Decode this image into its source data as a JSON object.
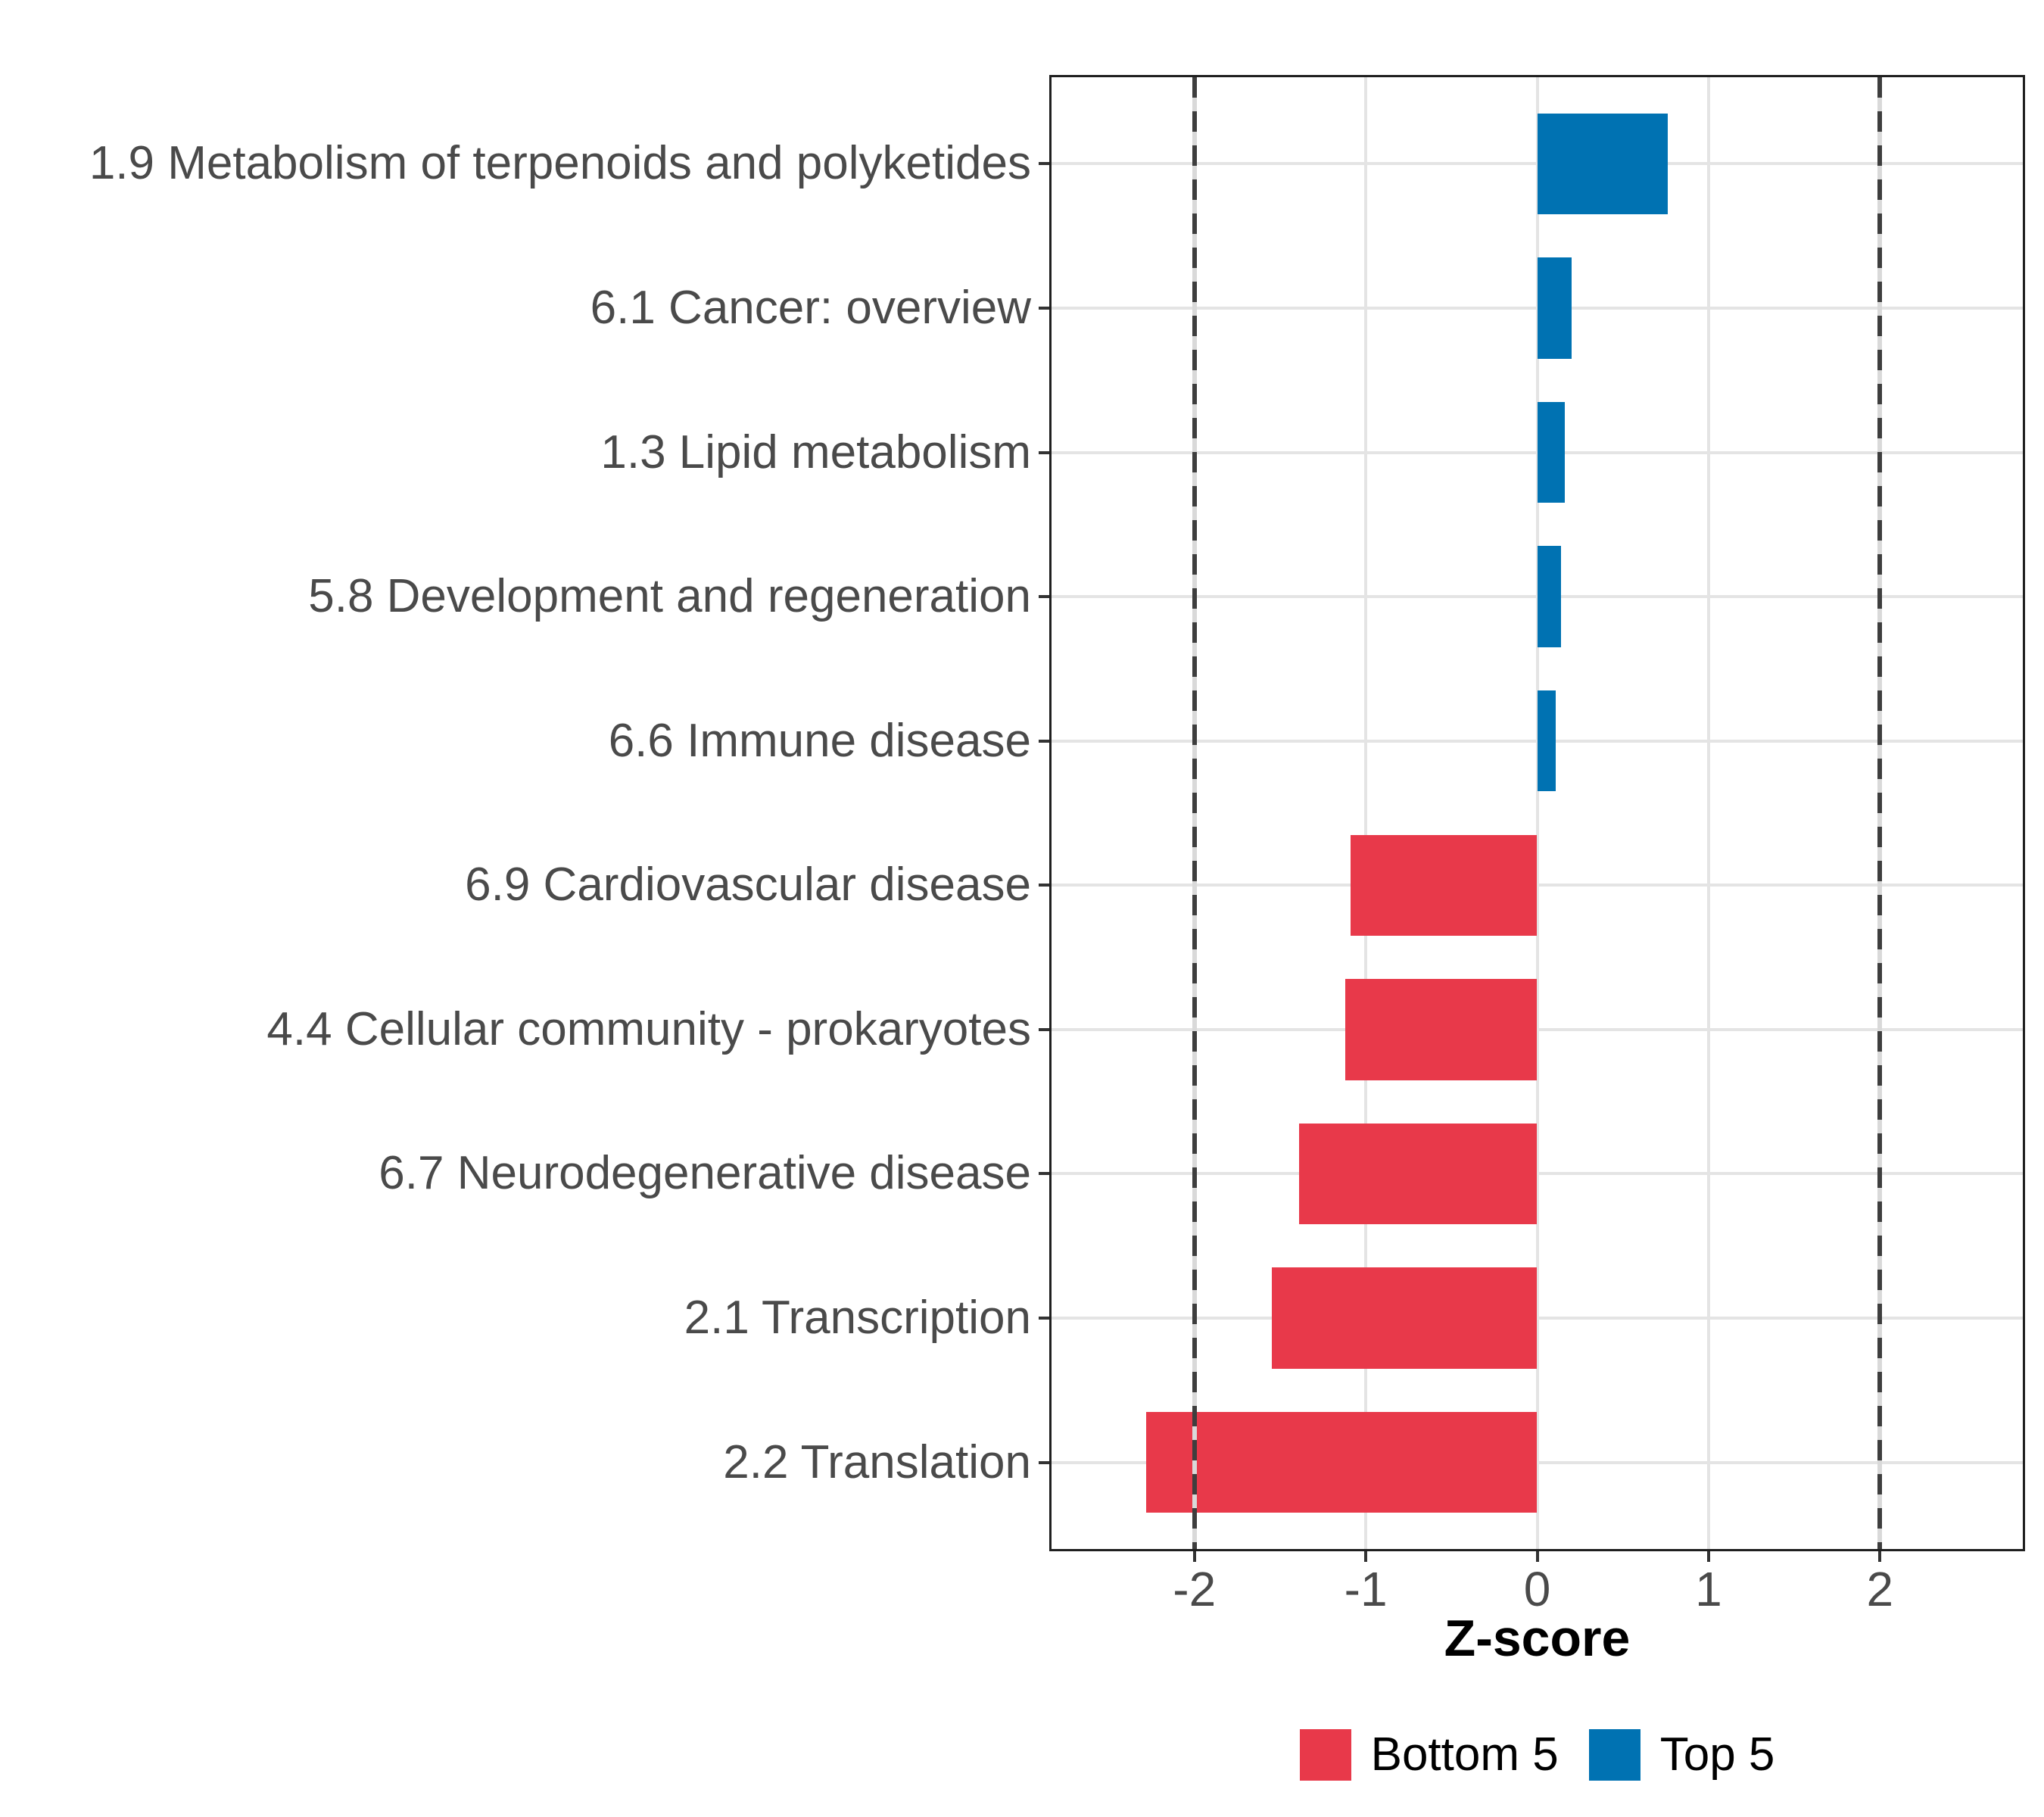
{
  "figure": {
    "background": "#FFFFFF",
    "panel_border_color": "#1F1F1F",
    "grid_color": "#E4E4E4",
    "tick_color": "#333333",
    "label_color": "#4A4A4A",
    "reference_line_color": "#3E3E3E",
    "reference_line_undercolor": "#D9D9D9"
  },
  "chart_data": {
    "type": "bar",
    "orientation": "horizontal",
    "title": "",
    "xlabel": "Z-score",
    "ylabel": "",
    "categories": [
      "1.9 Metabolism of terpenoids and polyketides",
      "6.1 Cancer: overview",
      "1.3 Lipid metabolism",
      "5.8 Development and regeneration",
      "6.6 Immune disease",
      "6.9 Cardiovascular disease",
      "4.4 Cellular community - prokaryotes",
      "6.7 Neurodegenerative disease",
      "2.1 Transcription",
      "2.2 Translation"
    ],
    "values": [
      0.76,
      0.2,
      0.16,
      0.14,
      0.11,
      -1.09,
      -1.12,
      -1.39,
      -1.55,
      -2.28
    ],
    "groups": [
      "Top 5",
      "Top 5",
      "Top 5",
      "Top 5",
      "Top 5",
      "Bottom 5",
      "Bottom 5",
      "Bottom 5",
      "Bottom 5",
      "Bottom 5"
    ],
    "series": [
      {
        "name": "Bottom 5",
        "color": "#E8394A"
      },
      {
        "name": "Top 5",
        "color": "#0072B2"
      }
    ],
    "x_ticks": [
      -2,
      -1,
      0,
      1,
      2
    ],
    "x_tick_labels": [
      "-2",
      "-1",
      "0",
      "1",
      "2"
    ],
    "xlim": [
      -2.8335,
      2.8335
    ],
    "reference_lines": [
      -2,
      2
    ],
    "reference_line_style": "dashed",
    "grid": true,
    "bar_width_fraction": 0.7,
    "legend_position": "bottom"
  },
  "legend": {
    "items": [
      {
        "label": "Bottom 5",
        "color": "#E8394A"
      },
      {
        "label": "Top 5",
        "color": "#0072B2"
      }
    ]
  }
}
